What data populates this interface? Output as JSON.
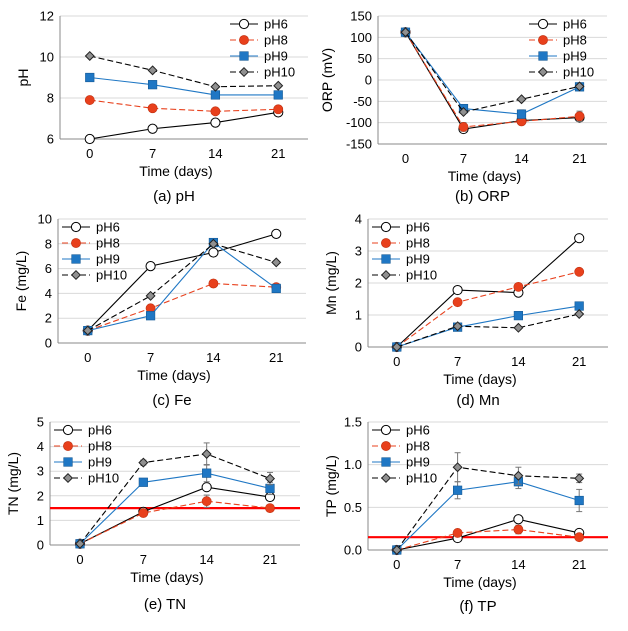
{
  "colors": {
    "pH6": "#ffffff",
    "pH8": "#e8401c",
    "pH9": "#1f77c4",
    "pH10": "#909090",
    "line_pH6": "#000000",
    "line_pH8": "#e8401c",
    "line_pH9": "#1f77c4",
    "line_pH10": "#000000",
    "reference": "#ff0000"
  },
  "chart_data": [
    {
      "id": "a",
      "type": "line",
      "caption": "(a) pH",
      "xlabel": "Time (days)",
      "ylabel": "pH",
      "x": [
        0,
        7,
        14,
        21
      ],
      "xticks": [
        "0",
        "7",
        "14",
        "21"
      ],
      "ylim": [
        6,
        12
      ],
      "yticks": [
        6,
        8,
        10,
        12
      ],
      "legend": "top-right",
      "series": [
        {
          "name": "pH6",
          "values": [
            6.0,
            6.5,
            6.8,
            7.3
          ]
        },
        {
          "name": "pH8",
          "values": [
            7.9,
            7.5,
            7.35,
            7.45
          ]
        },
        {
          "name": "pH9",
          "values": [
            9.0,
            8.65,
            8.15,
            8.15
          ]
        },
        {
          "name": "pH10",
          "values": [
            10.05,
            9.35,
            8.55,
            8.6
          ]
        }
      ]
    },
    {
      "id": "b",
      "type": "line",
      "caption": "(b) ORP",
      "xlabel": "Time (days)",
      "ylabel": "ORP (mV)",
      "x": [
        0,
        7,
        14,
        21
      ],
      "xticks": [
        "0",
        "7",
        "14",
        "21"
      ],
      "ylim": [
        -150,
        150
      ],
      "yticks": [
        -150,
        -100,
        -50,
        0,
        50,
        100,
        150
      ],
      "legend": "top-right",
      "series": [
        {
          "name": "pH6",
          "values": [
            112,
            -115,
            -95,
            -88
          ]
        },
        {
          "name": "pH8",
          "values": [
            112,
            -110,
            -97,
            -85
          ],
          "errors": [
            0,
            10,
            8,
            12
          ]
        },
        {
          "name": "pH9",
          "values": [
            112,
            -67,
            -80,
            -16
          ],
          "errors": [
            0,
            8,
            10,
            5
          ]
        },
        {
          "name": "pH10",
          "values": [
            112,
            -75,
            -45,
            -15
          ]
        }
      ]
    },
    {
      "id": "c",
      "type": "line",
      "caption": "(c) Fe",
      "xlabel": "Time (days)",
      "ylabel": "Fe (mg/L)",
      "x": [
        0,
        7,
        14,
        21
      ],
      "xticks": [
        "0",
        "7",
        "14",
        "21"
      ],
      "ylim": [
        0,
        10
      ],
      "yticks": [
        0,
        2,
        4,
        6,
        8,
        10
      ],
      "legend": "top-left",
      "series": [
        {
          "name": "pH6",
          "values": [
            1.0,
            6.2,
            7.3,
            8.8
          ]
        },
        {
          "name": "pH8",
          "values": [
            1.0,
            2.8,
            4.8,
            4.5
          ]
        },
        {
          "name": "pH9",
          "values": [
            1.0,
            2.2,
            8.1,
            4.4
          ]
        },
        {
          "name": "pH10",
          "values": [
            1.0,
            3.8,
            8.0,
            6.5
          ]
        }
      ]
    },
    {
      "id": "d",
      "type": "line",
      "caption": "(d) Mn",
      "xlabel": "Time (days)",
      "ylabel": "Mn (mg/L)",
      "x": [
        0,
        7,
        14,
        21
      ],
      "xticks": [
        "0",
        "7",
        "14",
        "21"
      ],
      "ylim": [
        0,
        4
      ],
      "yticks": [
        0,
        1,
        2,
        3,
        4
      ],
      "legend": "top-left",
      "series": [
        {
          "name": "pH6",
          "values": [
            0.0,
            1.78,
            1.7,
            3.4
          ]
        },
        {
          "name": "pH8",
          "values": [
            0.0,
            1.4,
            1.88,
            2.35
          ]
        },
        {
          "name": "pH9",
          "values": [
            0.0,
            0.62,
            0.98,
            1.28
          ]
        },
        {
          "name": "pH10",
          "values": [
            0.0,
            0.65,
            0.6,
            1.03
          ]
        }
      ]
    },
    {
      "id": "e",
      "type": "line",
      "caption": "(e) TN",
      "xlabel": "Time (days)",
      "ylabel": "TN (mg/L)",
      "x": [
        0,
        7,
        14,
        21
      ],
      "xticks": [
        "0",
        "7",
        "14",
        "21"
      ],
      "ylim": [
        0,
        5
      ],
      "yticks": [
        0,
        1,
        2,
        3,
        4,
        5
      ],
      "legend": "top-left",
      "reference_line": 1.5,
      "series": [
        {
          "name": "pH6",
          "values": [
            0.05,
            1.35,
            2.35,
            1.95
          ]
        },
        {
          "name": "pH8",
          "values": [
            0.05,
            1.3,
            1.78,
            1.5
          ],
          "errors": [
            0,
            0.1,
            0.25,
            0.1
          ]
        },
        {
          "name": "pH9",
          "values": [
            0.05,
            2.55,
            2.92,
            2.3
          ],
          "errors": [
            0,
            0.15,
            0.35,
            0.25
          ]
        },
        {
          "name": "pH10",
          "values": [
            0.05,
            3.35,
            3.7,
            2.7
          ],
          "errors": [
            0,
            0.1,
            0.45,
            0.25
          ]
        }
      ]
    },
    {
      "id": "f",
      "type": "line",
      "caption": "(f) TP",
      "xlabel": "Time (days)",
      "ylabel": "TP (mg/L)",
      "x": [
        0,
        7,
        14,
        21
      ],
      "xticks": [
        "0",
        "7",
        "14",
        "21"
      ],
      "ylim": [
        0,
        1.5
      ],
      "yticks": [
        0,
        0.5,
        1,
        1.5
      ],
      "ytickLabels": [
        "0.0",
        "0.5",
        "1.0",
        "1.5"
      ],
      "legend": "top-left",
      "reference_line": 0.15,
      "series": [
        {
          "name": "pH6",
          "values": [
            0.0,
            0.14,
            0.36,
            0.2
          ]
        },
        {
          "name": "pH8",
          "values": [
            0.0,
            0.2,
            0.24,
            0.15
          ],
          "errors": [
            0,
            0.03,
            0.05,
            0.03
          ]
        },
        {
          "name": "pH9",
          "values": [
            0.0,
            0.7,
            0.8,
            0.58
          ],
          "errors": [
            0,
            0.1,
            0.08,
            0.13
          ]
        },
        {
          "name": "pH10",
          "values": [
            0.0,
            0.97,
            0.87,
            0.84
          ],
          "errors": [
            0,
            0.17,
            0.1,
            0.05
          ]
        }
      ]
    }
  ]
}
